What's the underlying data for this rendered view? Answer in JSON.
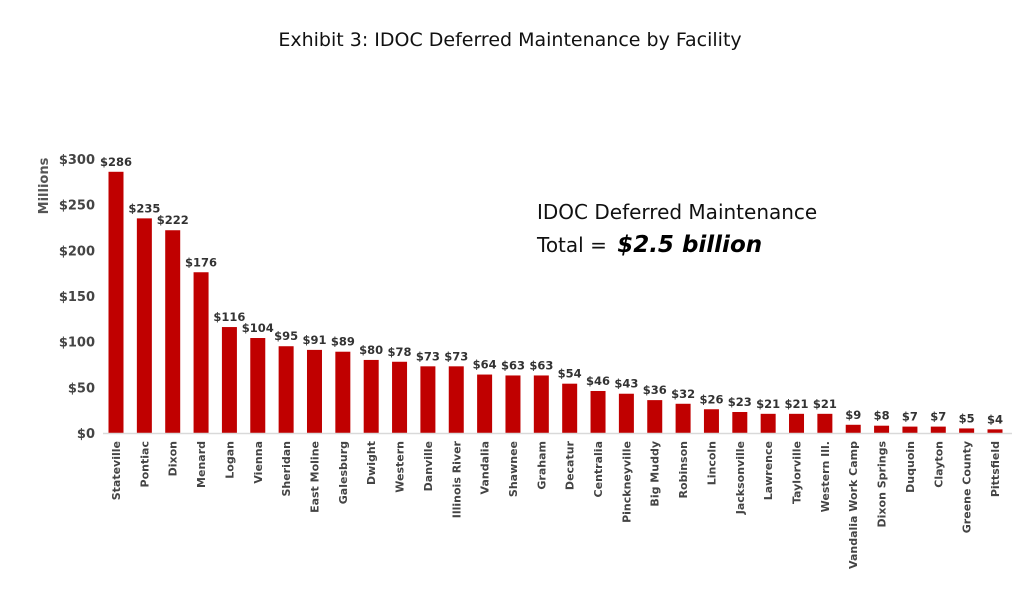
{
  "chart_data": {
    "type": "bar",
    "title": "Exhibit 3: IDOC Deferred Maintenance by Facility",
    "xlabel": "",
    "ylabel": "Millions",
    "ylim": [
      0,
      300
    ],
    "yticks": [
      0,
      50,
      100,
      150,
      200,
      250,
      300
    ],
    "ytick_labels": [
      "$0",
      "$50",
      "$100",
      "$150",
      "$200",
      "$250",
      "$300"
    ],
    "grid": false,
    "bar_color": "#C00000",
    "categories": [
      "Stateville",
      "Pontiac",
      "Dixon",
      "Menard",
      "Logan",
      "Vienna",
      "Sheridan",
      "East Moline",
      "Galesburg",
      "Dwight",
      "Western",
      "Danville",
      "Illinois River",
      "Vandalia",
      "Shawnee",
      "Graham",
      "Decatur",
      "Centralia",
      "Pinckneyville",
      "Big Muddy",
      "Robinson",
      "Lincoln",
      "Jacksonville",
      "Lawrence",
      "Taylorville",
      "Western Ill.",
      "Vandalia Work Camp",
      "Dixon Springs",
      "Duquoin",
      "Clayton",
      "Greene County",
      "Pittsfield"
    ],
    "values": [
      286,
      235,
      222,
      176,
      116,
      104,
      95,
      91,
      89,
      80,
      78,
      73,
      73,
      64,
      63,
      63,
      54,
      46,
      43,
      36,
      32,
      26,
      23,
      21,
      21,
      21,
      9,
      8,
      7,
      7,
      5,
      4
    ],
    "value_labels": [
      "$286",
      "$235",
      "$222",
      "$176",
      "$116",
      "$104",
      "$95",
      "$91",
      "$89",
      "$80",
      "$78",
      "$73",
      "$73",
      "$64",
      "$63",
      "$63",
      "$54",
      "$46",
      "$43",
      "$36",
      "$32",
      "$26",
      "$23",
      "$21",
      "$21",
      "$21",
      "$9",
      "$8",
      "$7",
      "$7",
      "$5",
      "$4"
    ],
    "annotation": {
      "line1": "IDOC Deferred Maintenance",
      "line2_prefix": "Total = ",
      "line2_emphasis": "$2.5 billion"
    }
  }
}
